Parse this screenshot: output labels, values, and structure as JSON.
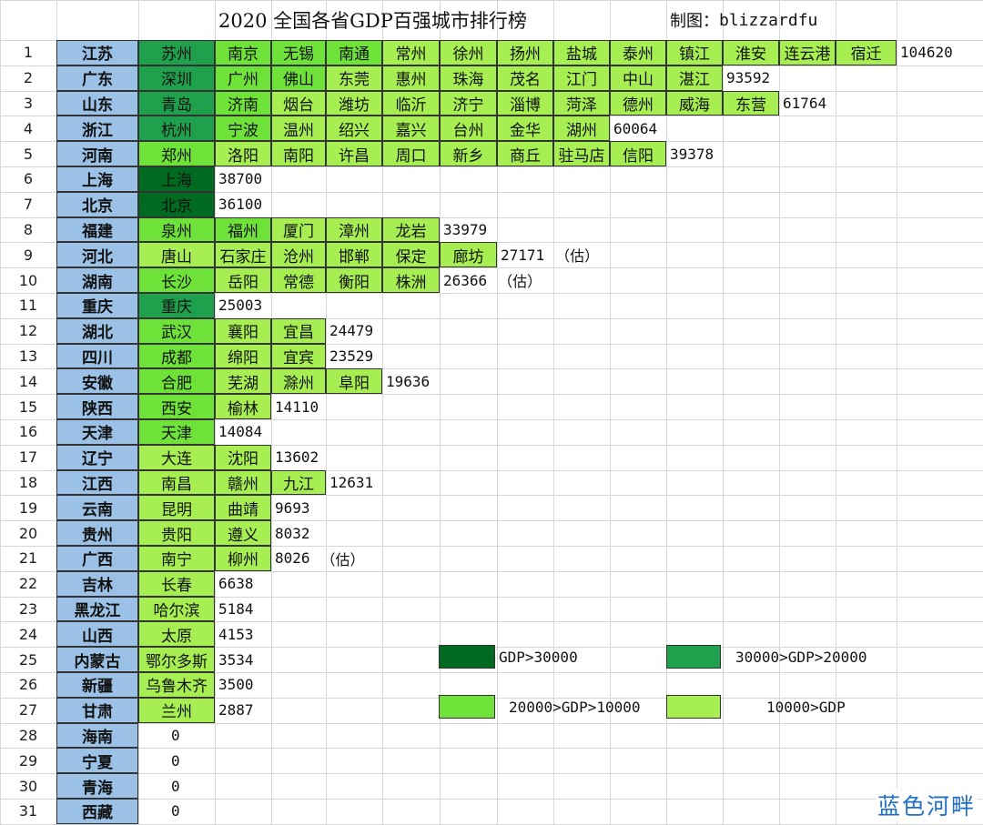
{
  "title": "2020 全国各省GDP百强城市排行榜",
  "credit_label": "制图：",
  "credit_name": "blizzardfu",
  "colors": {
    "level1": "#006b20",
    "level2": "#1ea04c",
    "level3": "#6fe23a",
    "level4": "#a6ee52",
    "province": "#9bc2e6"
  },
  "rows": [
    {
      "rank": "1",
      "province": "江苏",
      "gdp": "104620",
      "note": "",
      "cities": [
        {
          "name": "苏州",
          "level": 2
        },
        {
          "name": "南京",
          "level": 3
        },
        {
          "name": "无锡",
          "level": 3
        },
        {
          "name": "南通",
          "level": 3
        },
        {
          "name": "常州",
          "level": 4
        },
        {
          "name": "徐州",
          "level": 4
        },
        {
          "name": "扬州",
          "level": 4
        },
        {
          "name": "盐城",
          "level": 4
        },
        {
          "name": "泰州",
          "level": 4
        },
        {
          "name": "镇江",
          "level": 4
        },
        {
          "name": "淮安",
          "level": 4
        },
        {
          "name": "连云港",
          "level": 4
        },
        {
          "name": "宿迁",
          "level": 4
        }
      ]
    },
    {
      "rank": "2",
      "province": "广东",
      "gdp": "93592",
      "note": "",
      "cities": [
        {
          "name": "深圳",
          "level": 2
        },
        {
          "name": "广州",
          "level": 3
        },
        {
          "name": "佛山",
          "level": 3
        },
        {
          "name": "东莞",
          "level": 4
        },
        {
          "name": "惠州",
          "level": 4
        },
        {
          "name": "珠海",
          "level": 4
        },
        {
          "name": "茂名",
          "level": 4
        },
        {
          "name": "江门",
          "level": 4
        },
        {
          "name": "中山",
          "level": 4
        },
        {
          "name": "湛江",
          "level": 4
        }
      ]
    },
    {
      "rank": "3",
      "province": "山东",
      "gdp": "61764",
      "note": "",
      "cities": [
        {
          "name": "青岛",
          "level": 2
        },
        {
          "name": "济南",
          "level": 3
        },
        {
          "name": "烟台",
          "level": 4
        },
        {
          "name": "潍坊",
          "level": 4
        },
        {
          "name": "临沂",
          "level": 4
        },
        {
          "name": "济宁",
          "level": 4
        },
        {
          "name": "淄博",
          "level": 4
        },
        {
          "name": "菏泽",
          "level": 4
        },
        {
          "name": "德州",
          "level": 4
        },
        {
          "name": "威海",
          "level": 4
        },
        {
          "name": "东营",
          "level": 4
        }
      ]
    },
    {
      "rank": "4",
      "province": "浙江",
      "gdp": "60064",
      "note": "",
      "cities": [
        {
          "name": "杭州",
          "level": 2
        },
        {
          "name": "宁波",
          "level": 3
        },
        {
          "name": "温州",
          "level": 4
        },
        {
          "name": "绍兴",
          "level": 4
        },
        {
          "name": "嘉兴",
          "level": 4
        },
        {
          "name": "台州",
          "level": 4
        },
        {
          "name": "金华",
          "level": 4
        },
        {
          "name": "湖州",
          "level": 4
        }
      ]
    },
    {
      "rank": "5",
      "province": "河南",
      "gdp": "39378",
      "note": "",
      "cities": [
        {
          "name": "郑州",
          "level": 3
        },
        {
          "name": "洛阳",
          "level": 4
        },
        {
          "name": "南阳",
          "level": 4
        },
        {
          "name": "许昌",
          "level": 4
        },
        {
          "name": "周口",
          "level": 4
        },
        {
          "name": "新乡",
          "level": 4
        },
        {
          "name": "商丘",
          "level": 4
        },
        {
          "name": "驻马店",
          "level": 4
        },
        {
          "name": "信阳",
          "level": 4
        }
      ]
    },
    {
      "rank": "6",
      "province": "上海",
      "gdp": "38700",
      "note": "",
      "cities": [
        {
          "name": "上海",
          "level": 1
        }
      ]
    },
    {
      "rank": "7",
      "province": "北京",
      "gdp": "36100",
      "note": "",
      "cities": [
        {
          "name": "北京",
          "level": 1
        }
      ]
    },
    {
      "rank": "8",
      "province": "福建",
      "gdp": "33979",
      "note": "",
      "cities": [
        {
          "name": "泉州",
          "level": 3
        },
        {
          "name": "福州",
          "level": 3
        },
        {
          "name": "厦门",
          "level": 4
        },
        {
          "name": "漳州",
          "level": 4
        },
        {
          "name": "龙岩",
          "level": 4
        }
      ]
    },
    {
      "rank": "9",
      "province": "河北",
      "gdp": "27171",
      "note": "（估）",
      "cities": [
        {
          "name": "唐山",
          "level": 4
        },
        {
          "name": "石家庄",
          "level": 4
        },
        {
          "name": "沧州",
          "level": 4
        },
        {
          "name": "邯郸",
          "level": 4
        },
        {
          "name": "保定",
          "level": 4
        },
        {
          "name": "廊坊",
          "level": 4
        }
      ]
    },
    {
      "rank": "10",
      "province": "湖南",
      "gdp": "26366",
      "note": "（估）",
      "cities": [
        {
          "name": "长沙",
          "level": 3
        },
        {
          "name": "岳阳",
          "level": 4
        },
        {
          "name": "常德",
          "level": 4
        },
        {
          "name": "衡阳",
          "level": 4
        },
        {
          "name": "株洲",
          "level": 4
        }
      ]
    },
    {
      "rank": "11",
      "province": "重庆",
      "gdp": "25003",
      "note": "",
      "cities": [
        {
          "name": "重庆",
          "level": 2
        }
      ]
    },
    {
      "rank": "12",
      "province": "湖北",
      "gdp": "24479",
      "note": "",
      "cities": [
        {
          "name": "武汉",
          "level": 3
        },
        {
          "name": "襄阳",
          "level": 4
        },
        {
          "name": "宜昌",
          "level": 4
        }
      ]
    },
    {
      "rank": "13",
      "province": "四川",
      "gdp": "23529",
      "note": "",
      "cities": [
        {
          "name": "成都",
          "level": 3
        },
        {
          "name": "绵阳",
          "level": 4
        },
        {
          "name": "宜宾",
          "level": 4
        }
      ]
    },
    {
      "rank": "14",
      "province": "安徽",
      "gdp": "19636",
      "note": "",
      "cities": [
        {
          "name": "合肥",
          "level": 3
        },
        {
          "name": "芜湖",
          "level": 4
        },
        {
          "name": "滁州",
          "level": 4
        },
        {
          "name": "阜阳",
          "level": 4
        }
      ]
    },
    {
      "rank": "15",
      "province": "陕西",
      "gdp": "14110",
      "note": "",
      "cities": [
        {
          "name": "西安",
          "level": 3
        },
        {
          "name": "榆林",
          "level": 4
        }
      ]
    },
    {
      "rank": "16",
      "province": "天津",
      "gdp": "14084",
      "note": "",
      "cities": [
        {
          "name": "天津",
          "level": 3
        }
      ]
    },
    {
      "rank": "17",
      "province": "辽宁",
      "gdp": "13602",
      "note": "",
      "cities": [
        {
          "name": "大连",
          "level": 4
        },
        {
          "name": "沈阳",
          "level": 4
        }
      ]
    },
    {
      "rank": "18",
      "province": "江西",
      "gdp": "12631",
      "note": "",
      "cities": [
        {
          "name": "南昌",
          "level": 4
        },
        {
          "name": "赣州",
          "level": 4
        },
        {
          "name": "九江",
          "level": 4
        }
      ]
    },
    {
      "rank": "19",
      "province": "云南",
      "gdp": "9693",
      "note": "",
      "cities": [
        {
          "name": "昆明",
          "level": 4
        },
        {
          "name": "曲靖",
          "level": 4
        }
      ]
    },
    {
      "rank": "20",
      "province": "贵州",
      "gdp": "8032",
      "note": "",
      "cities": [
        {
          "name": "贵阳",
          "level": 4
        },
        {
          "name": "遵义",
          "level": 4
        }
      ]
    },
    {
      "rank": "21",
      "province": "广西",
      "gdp": "8026",
      "note": "（估）",
      "cities": [
        {
          "name": "南宁",
          "level": 4
        },
        {
          "name": "柳州",
          "level": 4
        }
      ]
    },
    {
      "rank": "22",
      "province": "吉林",
      "gdp": "6638",
      "note": "",
      "cities": [
        {
          "name": "长春",
          "level": 4
        }
      ]
    },
    {
      "rank": "23",
      "province": "黑龙江",
      "gdp": "5184",
      "note": "",
      "cities": [
        {
          "name": "哈尔滨",
          "level": 4
        }
      ]
    },
    {
      "rank": "24",
      "province": "山西",
      "gdp": "4153",
      "note": "",
      "cities": [
        {
          "name": "太原",
          "level": 4
        }
      ]
    },
    {
      "rank": "25",
      "province": "内蒙古",
      "gdp": "3534",
      "note": "",
      "cities": [
        {
          "name": "鄂尔多斯",
          "level": 4
        }
      ]
    },
    {
      "rank": "26",
      "province": "新疆",
      "gdp": "3500",
      "note": "",
      "cities": [
        {
          "name": "乌鲁木齐",
          "level": 4
        }
      ]
    },
    {
      "rank": "27",
      "province": "甘肃",
      "gdp": "2887",
      "note": "",
      "cities": [
        {
          "name": "兰州",
          "level": 4
        }
      ]
    },
    {
      "rank": "28",
      "province": "海南",
      "gdp": "0",
      "note": "",
      "cities": []
    },
    {
      "rank": "29",
      "province": "宁夏",
      "gdp": "0",
      "note": "",
      "cities": []
    },
    {
      "rank": "30",
      "province": "青海",
      "gdp": "0",
      "note": "",
      "cities": []
    },
    {
      "rank": "31",
      "province": "西藏",
      "gdp": "0",
      "note": "",
      "cities": []
    }
  ],
  "legend": [
    {
      "label": "GDP>30000",
      "level": 1
    },
    {
      "label": "30000>GDP>20000",
      "level": 2
    },
    {
      "label": "20000>GDP>10000",
      "level": 3
    },
    {
      "label": "10000>GDP",
      "level": 4
    }
  ],
  "watermark": "蓝色河畔"
}
